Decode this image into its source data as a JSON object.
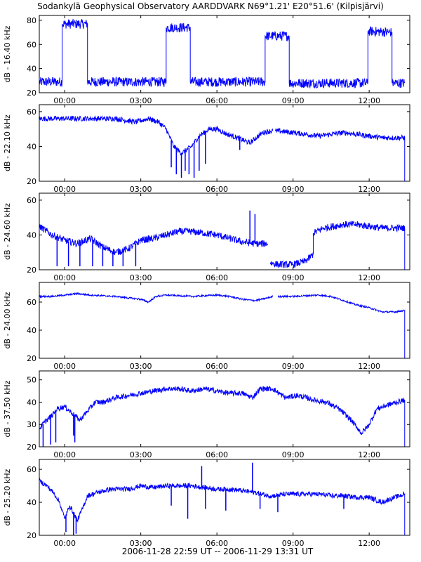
{
  "title": "Sodankylä Geophysical Observatory AARDDVARK N69°1.21' E20°51.6' (Kilpisjärvi)",
  "footer": "2006-11-28 22:59 UT -- 2006-11-29 13:31 UT",
  "colors": {
    "trace": "#0000ff",
    "axis": "#000000",
    "background": "#ffffff"
  },
  "chart_data": [
    {
      "type": "line",
      "ylabel": "dB - 16.40 kHz",
      "ylim": [
        20,
        84
      ],
      "yticks": [
        20,
        40,
        60,
        80
      ],
      "xlim": [
        -1.0,
        13.6
      ],
      "xticks": [
        0,
        3,
        6,
        9,
        12
      ],
      "xticklabels": [
        "00:00",
        "03:00",
        "06:00",
        "09:00",
        "12:00"
      ],
      "series": [
        {
          "noise": 4,
          "segments": [
            [
              [
                -1.0,
                29
              ],
              [
                -0.1,
                29
              ],
              [
                -0.1,
                77
              ],
              [
                0.9,
                77
              ],
              [
                0.9,
                29
              ],
              [
                4.0,
                29
              ],
              [
                4.0,
                74
              ],
              [
                4.95,
                74
              ],
              [
                4.95,
                29
              ],
              [
                7.9,
                29
              ],
              [
                7.9,
                67
              ],
              [
                8.85,
                67
              ],
              [
                8.85,
                28
              ],
              [
                11.95,
                28
              ],
              [
                11.95,
                71
              ],
              [
                12.9,
                70
              ],
              [
                12.9,
                28
              ],
              [
                13.4,
                28
              ]
            ]
          ]
        }
      ]
    },
    {
      "type": "line",
      "ylabel": "dB - 22.10 kHz",
      "ylim": [
        20,
        64
      ],
      "yticks": [
        20,
        40,
        60
      ],
      "xlim": [
        -1.0,
        13.6
      ],
      "xticks": [
        0,
        3,
        6,
        9,
        12
      ],
      "xticklabels": [
        "00:00",
        "03:00",
        "06:00",
        "09:00",
        "12:00"
      ],
      "series": [
        {
          "noise": 1.5,
          "segments": [
            [
              [
                -1.0,
                56
              ],
              [
                0,
                56
              ],
              [
                1,
                56
              ],
              [
                2,
                56
              ],
              [
                2.8,
                54
              ],
              [
                3.3,
                56
              ],
              [
                3.7,
                54
              ],
              [
                4.0,
                50
              ],
              [
                4.3,
                40
              ],
              [
                4.6,
                36
              ],
              [
                5.0,
                40
              ],
              [
                5.3,
                46
              ],
              [
                5.7,
                50
              ],
              [
                6.0,
                50
              ],
              [
                6.4,
                47
              ],
              [
                6.8,
                45
              ],
              [
                7.3,
                42
              ],
              [
                7.8,
                48
              ],
              [
                8.2,
                49
              ]
            ],
            [
              [
                8.3,
                49
              ],
              [
                9.0,
                48
              ],
              [
                9.5,
                47
              ],
              [
                10.0,
                46
              ],
              [
                10.5,
                47
              ],
              [
                11.0,
                48
              ],
              [
                11.5,
                47
              ],
              [
                12.0,
                46
              ],
              [
                12.5,
                45
              ],
              [
                13.0,
                45
              ],
              [
                13.4,
                45
              ],
              [
                13.4,
                20
              ]
            ]
          ],
          "spikes": [
            [
              4.2,
              28
            ],
            [
              4.4,
              24
            ],
            [
              4.6,
              22
            ],
            [
              4.75,
              26
            ],
            [
              4.9,
              24
            ],
            [
              5.1,
              22
            ],
            [
              5.3,
              26
            ],
            [
              5.55,
              30
            ],
            [
              6.9,
              38
            ]
          ]
        }
      ]
    },
    {
      "type": "line",
      "ylabel": "dB - 24.60 kHz",
      "ylim": [
        20,
        64
      ],
      "yticks": [
        20,
        40,
        60
      ],
      "xlim": [
        -1.0,
        13.6
      ],
      "xticks": [
        0,
        3,
        6,
        9,
        12
      ],
      "xticklabels": [
        "00:00",
        "03:00",
        "06:00",
        "09:00",
        "12:00"
      ],
      "series": [
        {
          "noise": 2,
          "segments": [
            [
              [
                -1.0,
                45
              ],
              [
                -0.5,
                40
              ],
              [
                0,
                37
              ],
              [
                0.5,
                35
              ],
              [
                1,
                38
              ],
              [
                1.5,
                33
              ],
              [
                2,
                30
              ],
              [
                2.5,
                32
              ],
              [
                3,
                37
              ],
              [
                3.5,
                38
              ],
              [
                4,
                40
              ],
              [
                4.5,
                42
              ],
              [
                5,
                42
              ],
              [
                5.5,
                41
              ],
              [
                6,
                40
              ],
              [
                6.5,
                38
              ],
              [
                7,
                36
              ],
              [
                7.5,
                35
              ],
              [
                8.0,
                35
              ]
            ],
            [
              [
                8.1,
                24
              ],
              [
                8.4,
                23
              ],
              [
                9.0,
                23
              ],
              [
                9.5,
                25
              ],
              [
                9.8,
                29
              ],
              [
                9.8,
                41
              ],
              [
                10.2,
                44
              ],
              [
                11,
                46
              ],
              [
                11.5,
                46
              ],
              [
                12,
                45
              ],
              [
                12.5,
                44
              ],
              [
                13,
                44
              ],
              [
                13.4,
                44
              ],
              [
                13.4,
                20
              ]
            ]
          ],
          "spikes": [
            [
              -0.3,
              22
            ],
            [
              0.15,
              22
            ],
            [
              0.6,
              22
            ],
            [
              1.1,
              22
            ],
            [
              1.5,
              22
            ],
            [
              1.9,
              22
            ],
            [
              2.3,
              22
            ],
            [
              2.8,
              22
            ],
            [
              7.3,
              54
            ],
            [
              7.5,
              52
            ]
          ]
        }
      ]
    },
    {
      "type": "line",
      "ylabel": "dB - 24.00 kHz",
      "ylim": [
        20,
        74
      ],
      "yticks": [
        20,
        40,
        60
      ],
      "xlim": [
        -1.0,
        13.6
      ],
      "xticks": [
        0,
        3,
        6,
        9,
        12
      ],
      "xticklabels": [
        "00:00",
        "03:00",
        "06:00",
        "09:00",
        "12:00"
      ],
      "series": [
        {
          "noise": 0.6,
          "segments": [
            [
              [
                -1.0,
                64
              ],
              [
                -0.5,
                64
              ],
              [
                0,
                65
              ],
              [
                0.5,
                66
              ],
              [
                1,
                65
              ],
              [
                2,
                64
              ],
              [
                3,
                62
              ],
              [
                3.3,
                60
              ],
              [
                3.6,
                64
              ],
              [
                4,
                65
              ],
              [
                5,
                64
              ],
              [
                6,
                65
              ],
              [
                6.5,
                64
              ],
              [
                7,
                62
              ],
              [
                7.5,
                61
              ],
              [
                8.0,
                63
              ],
              [
                8.2,
                64
              ]
            ],
            [
              [
                8.4,
                64
              ],
              [
                9,
                64
              ],
              [
                10,
                65
              ],
              [
                10.5,
                64
              ],
              [
                11,
                61
              ],
              [
                11.5,
                58
              ],
              [
                12,
                56
              ],
              [
                12.5,
                53
              ],
              [
                13,
                53
              ],
              [
                13.4,
                54
              ],
              [
                13.4,
                20
              ]
            ]
          ]
        }
      ]
    },
    {
      "type": "line",
      "ylabel": "dB - 37.50 kHz",
      "ylim": [
        20,
        54
      ],
      "yticks": [
        20,
        30,
        40,
        50
      ],
      "xlim": [
        -1.0,
        13.6
      ],
      "xticks": [
        0,
        3,
        6,
        9,
        12
      ],
      "xticklabels": [
        "00:00",
        "03:00",
        "06:00",
        "09:00",
        "12:00"
      ],
      "series": [
        {
          "noise": 1.2,
          "segments": [
            [
              [
                -1.0,
                28
              ],
              [
                -0.8,
                31
              ],
              [
                -0.5,
                34
              ],
              [
                -0.3,
                37
              ],
              [
                0,
                38
              ],
              [
                0.3,
                35
              ],
              [
                0.6,
                32
              ],
              [
                0.9,
                36
              ],
              [
                1.2,
                40
              ],
              [
                1.5,
                40
              ],
              [
                2,
                42
              ],
              [
                2.5,
                43
              ],
              [
                3,
                44
              ],
              [
                3.5,
                45
              ],
              [
                4,
                46
              ],
              [
                4.5,
                46
              ],
              [
                5,
                45
              ],
              [
                5.5,
                46
              ],
              [
                6,
                45
              ],
              [
                6.5,
                44
              ],
              [
                7,
                44
              ],
              [
                7.4,
                42
              ],
              [
                7.7,
                46
              ],
              [
                8.2,
                46
              ],
              [
                8.7,
                42
              ],
              [
                9.2,
                43
              ],
              [
                9.8,
                41
              ],
              [
                10.3,
                40
              ],
              [
                10.8,
                37
              ],
              [
                11.2,
                33
              ],
              [
                11.5,
                29
              ],
              [
                11.7,
                26
              ],
              [
                12.0,
                30
              ],
              [
                12.3,
                37
              ],
              [
                12.8,
                39
              ],
              [
                13.4,
                41
              ],
              [
                13.4,
                20
              ]
            ]
          ],
          "spikes": [
            [
              -0.85,
              20
            ],
            [
              -0.55,
              21
            ],
            [
              -0.35,
              22
            ],
            [
              0.4,
              22
            ],
            [
              0.35,
              25
            ]
          ]
        }
      ]
    },
    {
      "type": "line",
      "ylabel": "dB - 25.20 kHz",
      "ylim": [
        20,
        66
      ],
      "yticks": [
        20,
        40,
        60
      ],
      "xlim": [
        -1.0,
        13.6
      ],
      "xticks": [
        0,
        3,
        6,
        9,
        12
      ],
      "xticklabels": [
        "00:00",
        "03:00",
        "06:00",
        "09:00",
        "12:00"
      ],
      "series": [
        {
          "noise": 1.5,
          "segments": [
            [
              [
                -1.0,
                53
              ],
              [
                -0.7,
                50
              ],
              [
                -0.4,
                45
              ],
              [
                -0.2,
                40
              ],
              [
                0,
                30
              ],
              [
                0.2,
                38
              ],
              [
                0.5,
                29
              ],
              [
                0.7,
                36
              ],
              [
                0.9,
                44
              ],
              [
                1.3,
                46
              ],
              [
                1.8,
                48
              ],
              [
                2.5,
                48
              ],
              [
                3,
                50
              ],
              [
                3.5,
                49
              ],
              [
                4,
                50
              ],
              [
                4.5,
                50
              ],
              [
                5,
                50
              ],
              [
                5.5,
                49
              ],
              [
                6,
                48
              ],
              [
                6.5,
                48
              ],
              [
                7,
                47
              ],
              [
                7.5,
                46
              ],
              [
                8,
                44
              ],
              [
                8.3,
                44
              ],
              [
                8.7,
                45
              ],
              [
                9.5,
                45
              ],
              [
                10,
                45
              ],
              [
                10.5,
                44
              ],
              [
                11,
                44
              ],
              [
                11.5,
                43
              ],
              [
                12,
                43
              ],
              [
                12.5,
                40
              ],
              [
                13,
                43
              ],
              [
                13.4,
                45
              ],
              [
                13.4,
                20
              ]
            ]
          ],
          "spikes": [
            [
              0.35,
              20
            ],
            [
              0.45,
              21
            ],
            [
              0.05,
              22
            ],
            [
              4.2,
              38
            ],
            [
              4.85,
              30
            ],
            [
              5.4,
              62
            ],
            [
              5.55,
              36
            ],
            [
              6.35,
              35
            ],
            [
              7.4,
              64
            ],
            [
              7.7,
              36
            ],
            [
              8.4,
              34
            ],
            [
              11.0,
              36
            ]
          ]
        }
      ]
    }
  ]
}
